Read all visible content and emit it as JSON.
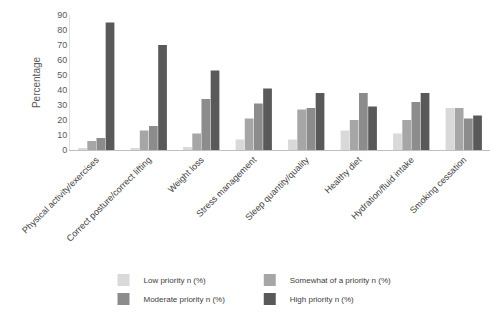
{
  "chart_data": {
    "type": "bar",
    "y_label": "Percentage",
    "categories": [
      "Physical activity/exercises",
      "Correct posture/correct lifting",
      "Weight loss",
      "Stress management",
      "Sleep quantity/quality",
      "Healthy diet",
      "Hydration/fluid intake",
      "Smoking cessation"
    ],
    "series": [
      {
        "name": "Low priority n (%)",
        "color": "#d9d9d9",
        "values": [
          1,
          1,
          2,
          7,
          7,
          13,
          11,
          28
        ]
      },
      {
        "name": "Somewhat of a priority n (%)",
        "color": "#a6a6a6",
        "values": [
          6,
          13,
          11,
          21,
          27,
          20,
          20,
          28
        ]
      },
      {
        "name": "Moderate priority n (%)",
        "color": "#8c8c8c",
        "values": [
          8,
          16,
          34,
          31,
          28,
          38,
          32,
          21
        ]
      },
      {
        "name": "High priority n (%)",
        "color": "#595959",
        "values": [
          85,
          70,
          53,
          41,
          38,
          29,
          38,
          23
        ]
      }
    ],
    "ylim": [
      0,
      90
    ],
    "yticks": [
      0,
      10,
      20,
      30,
      40,
      50,
      60,
      70,
      80,
      90
    ],
    "grid": false,
    "legend": "bottom"
  }
}
